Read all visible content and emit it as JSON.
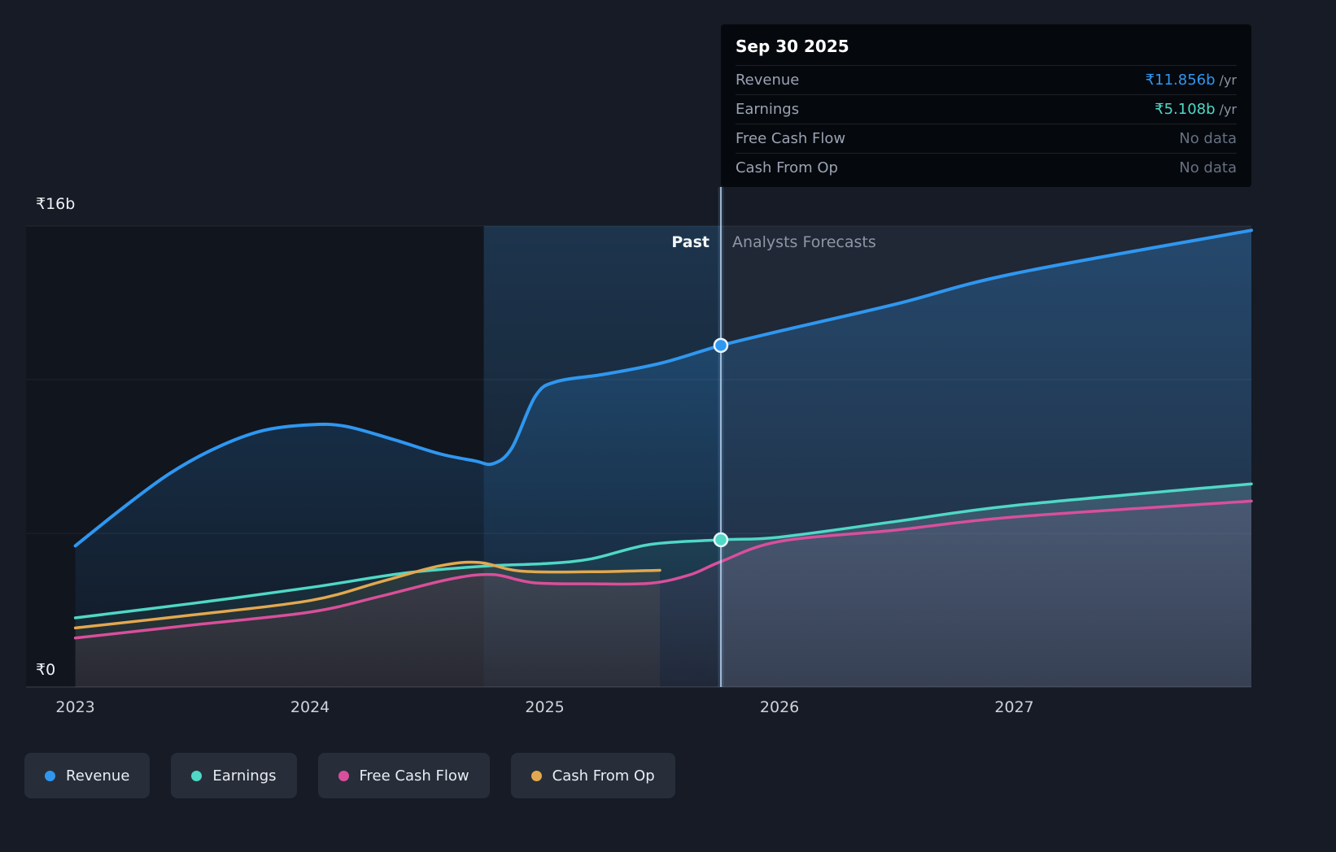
{
  "tooltip": {
    "date": "Sep 30 2025",
    "rows": [
      {
        "label": "Revenue",
        "value": "₹11.856b",
        "suffix": "/yr",
        "value_color": "#2f97f0",
        "muted": false
      },
      {
        "label": "Earnings",
        "value": "₹5.108b",
        "suffix": "/yr",
        "value_color": "#4fd8c5",
        "muted": false
      },
      {
        "label": "Free Cash Flow",
        "value": "No data",
        "suffix": "",
        "muted": true
      },
      {
        "label": "Cash From Op",
        "value": "No data",
        "suffix": "",
        "muted": true
      }
    ]
  },
  "chart": {
    "past_label": "Past",
    "forecast_label": "Analysts Forecasts"
  },
  "legend": [
    {
      "key": "revenue",
      "label": "Revenue",
      "color": "#2f97f0"
    },
    {
      "key": "earnings",
      "label": "Earnings",
      "color": "#4fd8c5"
    },
    {
      "key": "free-cash-flow",
      "label": "Free Cash Flow",
      "color": "#d94f9b"
    },
    {
      "key": "cash-from-op",
      "label": "Cash From Op",
      "color": "#e3a84f"
    }
  ],
  "chart_data": {
    "type": "line",
    "currency_unit": "₹ billions",
    "xlim": [
      2022.79,
      2028.01
    ],
    "ylim": [
      0,
      16
    ],
    "divider_x": 2025.75,
    "divider_date": "Sep 30 2025",
    "highlight_band": [
      2024.74,
      2025.75
    ],
    "gridlines": [
      16,
      10.67,
      5.33
    ],
    "y_ticks": [
      {
        "value": 16,
        "label": "₹16b"
      },
      {
        "value": 0,
        "label": "₹0"
      }
    ],
    "x_ticks": [
      {
        "pos": 2023,
        "label": "2023"
      },
      {
        "pos": 2024,
        "label": "2024"
      },
      {
        "pos": 2025,
        "label": "2025"
      },
      {
        "pos": 2026,
        "label": "2026"
      },
      {
        "pos": 2027,
        "label": "2027"
      }
    ],
    "series": [
      {
        "key": "revenue",
        "name": "Revenue",
        "color": "#2f97f0",
        "width": 4,
        "fill_top": 0.3,
        "fill_bottom": 0.03,
        "marker": [
          2025.75,
          11.856
        ],
        "points": [
          [
            2023.0,
            4.9
          ],
          [
            2023.2,
            6.2
          ],
          [
            2023.4,
            7.4
          ],
          [
            2023.6,
            8.3
          ],
          [
            2023.8,
            8.9
          ],
          [
            2024.0,
            9.1
          ],
          [
            2024.15,
            9.05
          ],
          [
            2024.35,
            8.6
          ],
          [
            2024.55,
            8.1
          ],
          [
            2024.7,
            7.85
          ],
          [
            2024.78,
            7.75
          ],
          [
            2024.86,
            8.3
          ],
          [
            2024.96,
            10.1
          ],
          [
            2025.05,
            10.6
          ],
          [
            2025.25,
            10.85
          ],
          [
            2025.5,
            11.25
          ],
          [
            2025.75,
            11.856
          ],
          [
            2026.0,
            12.35
          ],
          [
            2026.5,
            13.3
          ],
          [
            2027.0,
            14.35
          ],
          [
            2028.01,
            15.85
          ]
        ]
      },
      {
        "key": "earnings",
        "name": "Earnings",
        "color": "#4fd8c5",
        "width": 3.5,
        "fill_top": 0.18,
        "fill_bottom": 0.04,
        "marker": [
          2025.75,
          5.108
        ],
        "points": [
          [
            2023.0,
            2.4
          ],
          [
            2023.5,
            2.9
          ],
          [
            2024.0,
            3.45
          ],
          [
            2024.4,
            3.95
          ],
          [
            2024.75,
            4.2
          ],
          [
            2025.0,
            4.28
          ],
          [
            2025.2,
            4.45
          ],
          [
            2025.45,
            4.95
          ],
          [
            2025.75,
            5.108
          ],
          [
            2026.0,
            5.2
          ],
          [
            2026.5,
            5.75
          ],
          [
            2027.0,
            6.3
          ],
          [
            2028.01,
            7.05
          ]
        ]
      },
      {
        "key": "free-cash-flow",
        "name": "Free Cash Flow",
        "color": "#d94f9b",
        "width": 3.5,
        "fill_top": 0.18,
        "fill_bottom": 0.05,
        "marker": null,
        "points": [
          [
            2023.0,
            1.7
          ],
          [
            2023.5,
            2.15
          ],
          [
            2024.0,
            2.6
          ],
          [
            2024.3,
            3.15
          ],
          [
            2024.6,
            3.75
          ],
          [
            2024.78,
            3.9
          ],
          [
            2024.95,
            3.62
          ],
          [
            2025.2,
            3.58
          ],
          [
            2025.45,
            3.6
          ],
          [
            2025.62,
            3.9
          ],
          [
            2025.75,
            4.35
          ],
          [
            2026.0,
            5.05
          ],
          [
            2026.5,
            5.45
          ],
          [
            2027.0,
            5.9
          ],
          [
            2028.01,
            6.45
          ]
        ]
      },
      {
        "key": "cash-from-op",
        "name": "Cash From Op",
        "color": "#e3a84f",
        "width": 3.5,
        "fill_top": 0.22,
        "fill_bottom": 0.05,
        "marker": null,
        "points": [
          [
            2023.0,
            2.05
          ],
          [
            2023.5,
            2.5
          ],
          [
            2024.0,
            3.0
          ],
          [
            2024.3,
            3.65
          ],
          [
            2024.55,
            4.2
          ],
          [
            2024.72,
            4.32
          ],
          [
            2024.9,
            4.02
          ],
          [
            2025.2,
            4.0
          ],
          [
            2025.49,
            4.05
          ]
        ]
      }
    ]
  }
}
